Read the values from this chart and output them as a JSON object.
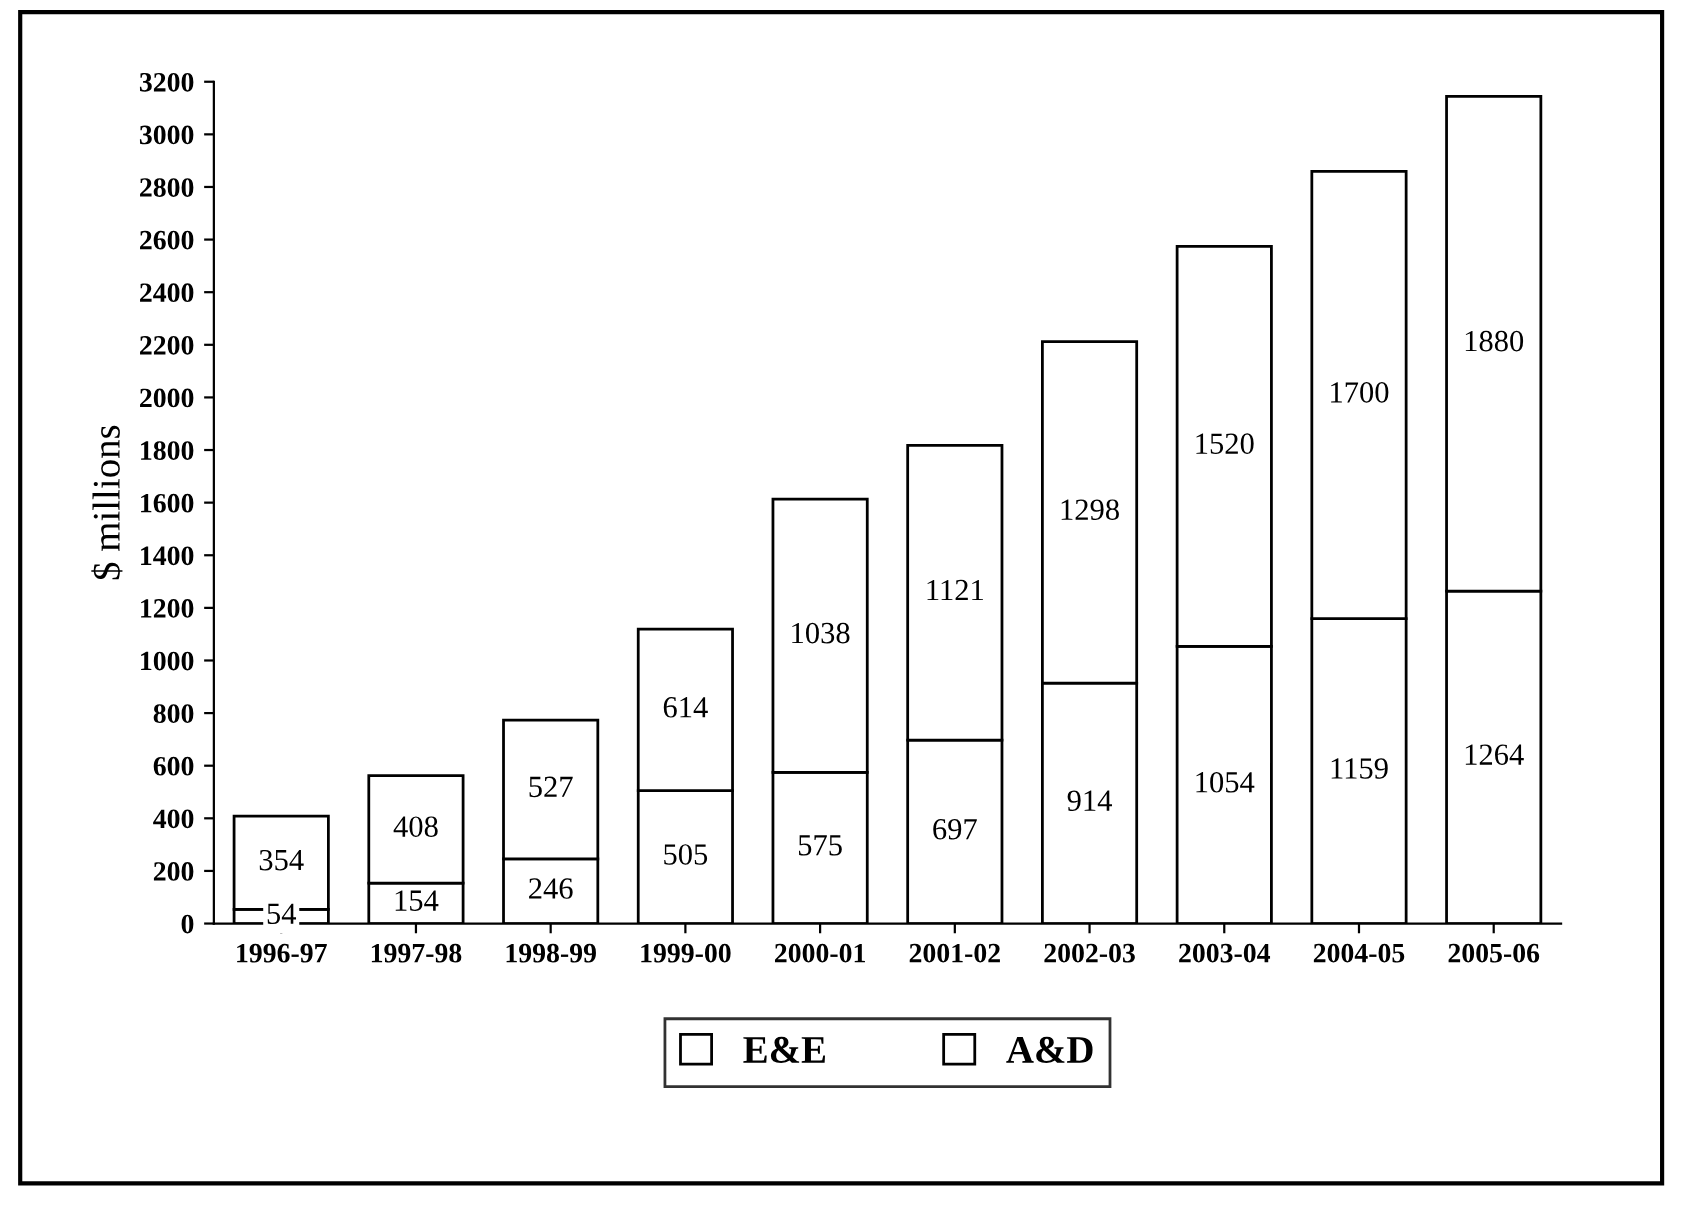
{
  "chart_data": {
    "type": "bar",
    "stacked": true,
    "ylabel": "$ millions",
    "categories": [
      "1996-97",
      "1997-98",
      "1998-99",
      "1999-00",
      "2000-01",
      "2001-02",
      "2002-03",
      "2003-04",
      "2004-05",
      "2005-06"
    ],
    "series": [
      {
        "name": "E&E",
        "color": "#ffffff",
        "values": [
          54,
          154,
          246,
          505,
          575,
          697,
          914,
          1054,
          1159,
          1264
        ]
      },
      {
        "name": "A&D",
        "color": "#ffffff",
        "values": [
          354,
          408,
          527,
          614,
          1038,
          1121,
          1298,
          1520,
          1700,
          1880
        ]
      }
    ],
    "ylim": [
      0,
      3200
    ],
    "yticks": [
      0,
      200,
      400,
      600,
      800,
      1000,
      1200,
      1400,
      1600,
      1800,
      2000,
      2200,
      2400,
      2600,
      2800,
      3000,
      3200
    ],
    "data_labels": true,
    "grid": false,
    "legend": "bottom"
  }
}
